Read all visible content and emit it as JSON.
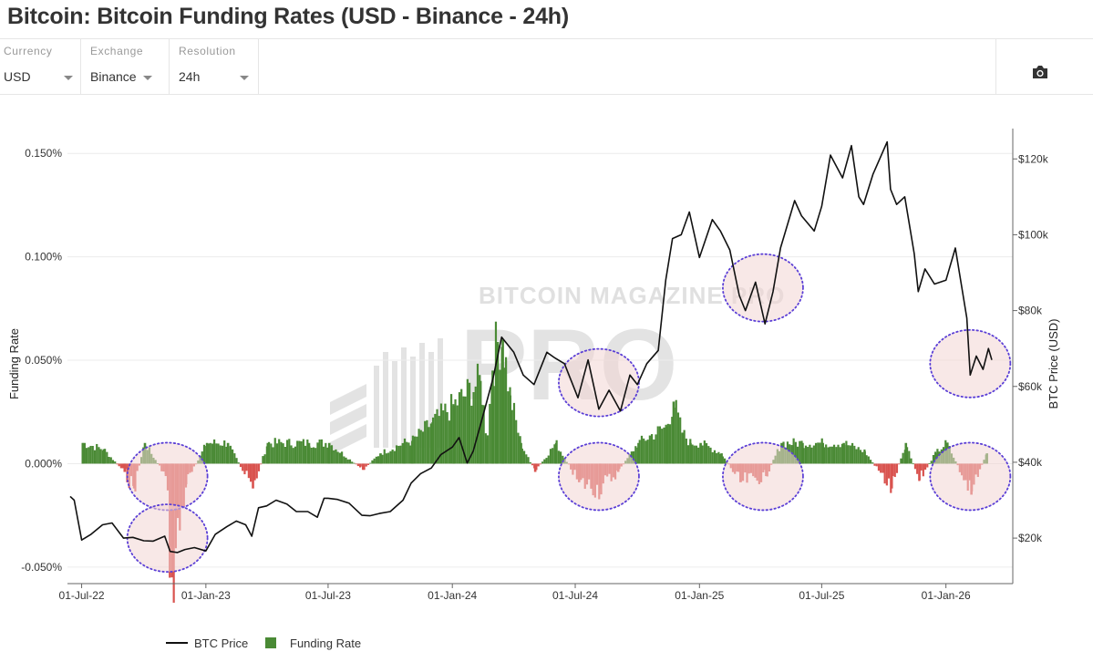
{
  "title": "Bitcoin: Bitcoin Funding Rates (USD - Binance - 24h)",
  "controls": [
    {
      "label": "Currency",
      "value": "USD"
    },
    {
      "label": "Exchange",
      "value": "Binance"
    },
    {
      "label": "Resolution",
      "value": "24h"
    }
  ],
  "icons": {
    "snapshot": "camera-icon",
    "dropdown": "caret-down-icon"
  },
  "colors": {
    "price": "#111111",
    "funding_pos": "#4a8a35",
    "funding_neg": "#d9534f",
    "highlight": "#f3d6d3",
    "circle": "#5b3fd6"
  },
  "chart_data": {
    "type": "bar+line",
    "title": "",
    "watermark": "BITCOIN MAGAZINE PRO",
    "xlabel": "",
    "ylabel": "Funding Rate",
    "y2label": "BTC Price (USD)",
    "x_ticks": [
      "01-Jul-22",
      "01-Jan-23",
      "01-Jul-23",
      "01-Jan-24",
      "01-Jul-24",
      "01-Jan-25",
      "01-Jul-25",
      "01-Jan-26"
    ],
    "y_ticks": [
      "0.150%",
      "0.100%",
      "0.050%",
      "0.000%",
      "-0.050%"
    ],
    "y_tick_values": [
      0.15,
      0.1,
      0.05,
      0,
      -0.05
    ],
    "ylim": [
      -0.058,
      0.162
    ],
    "y2_ticks": [
      "$120k",
      "$100k",
      "$80k",
      "$60k",
      "$40k",
      "$20k"
    ],
    "y2_tick_values": [
      120000,
      100000,
      80000,
      60000,
      40000,
      20000
    ],
    "y2lim": [
      8000,
      128000
    ],
    "xlim": [
      "2022-06-10",
      "2026-04-10"
    ],
    "legend_position": "bottom-left",
    "series": [
      {
        "name": "BTC Price",
        "type": "line",
        "axis": "right",
        "x": [
          "2022-06-14",
          "2022-06-20",
          "2022-07-01",
          "2022-07-15",
          "2022-08-01",
          "2022-08-15",
          "2022-09-01",
          "2022-09-15",
          "2022-10-01",
          "2022-10-15",
          "2022-11-01",
          "2022-11-09",
          "2022-11-20",
          "2022-12-01",
          "2022-12-15",
          "2023-01-01",
          "2023-01-15",
          "2023-02-01",
          "2023-02-15",
          "2023-03-01",
          "2023-03-10",
          "2023-03-20",
          "2023-04-01",
          "2023-04-15",
          "2023-05-01",
          "2023-05-15",
          "2023-06-01",
          "2023-06-15",
          "2023-06-25",
          "2023-07-01",
          "2023-07-15",
          "2023-08-01",
          "2023-08-20",
          "2023-09-01",
          "2023-09-15",
          "2023-10-01",
          "2023-10-20",
          "2023-11-01",
          "2023-11-15",
          "2023-12-01",
          "2023-12-15",
          "2024-01-01",
          "2024-01-11",
          "2024-01-23",
          "2024-02-01",
          "2024-02-15",
          "2024-03-01",
          "2024-03-14",
          "2024-04-01",
          "2024-04-15",
          "2024-05-01",
          "2024-05-20",
          "2024-06-01",
          "2024-06-15",
          "2024-07-05",
          "2024-07-20",
          "2024-08-05",
          "2024-08-20",
          "2024-09-06",
          "2024-09-20",
          "2024-10-01",
          "2024-10-15",
          "2024-11-01",
          "2024-11-12",
          "2024-11-22",
          "2024-12-05",
          "2024-12-17",
          "2025-01-01",
          "2025-01-20",
          "2025-02-01",
          "2025-02-15",
          "2025-03-01",
          "2025-03-10",
          "2025-03-25",
          "2025-04-08",
          "2025-04-20",
          "2025-05-01",
          "2025-05-22",
          "2025-06-01",
          "2025-06-20",
          "2025-07-01",
          "2025-07-14",
          "2025-08-01",
          "2025-08-14",
          "2025-08-25",
          "2025-09-01",
          "2025-09-15",
          "2025-10-06",
          "2025-10-11",
          "2025-10-20",
          "2025-11-01",
          "2025-11-15",
          "2025-11-21",
          "2025-12-01",
          "2025-12-15",
          "2026-01-01",
          "2026-01-15",
          "2026-02-01",
          "2026-02-06",
          "2026-02-15",
          "2026-02-25",
          "2026-03-05",
          "2026-03-10"
        ],
        "values": [
          31000,
          30000,
          19500,
          21000,
          23500,
          24000,
          20000,
          20200,
          19300,
          19200,
          20500,
          16500,
          16200,
          17000,
          17500,
          16600,
          21000,
          23000,
          24500,
          23500,
          20500,
          28000,
          28500,
          30000,
          29000,
          27000,
          27000,
          25500,
          30500,
          30500,
          30200,
          29200,
          26000,
          25900,
          26500,
          27000,
          30000,
          34500,
          37000,
          38500,
          42000,
          44000,
          46500,
          39800,
          43000,
          52000,
          62000,
          73000,
          69000,
          63000,
          60500,
          69000,
          67500,
          66000,
          57000,
          67000,
          54000,
          59000,
          53500,
          63000,
          60500,
          66000,
          69500,
          88000,
          99000,
          100000,
          106000,
          94000,
          104000,
          101000,
          96000,
          84000,
          80000,
          87500,
          76500,
          85000,
          96500,
          109000,
          105000,
          101000,
          107500,
          121000,
          115000,
          123500,
          110000,
          108000,
          116000,
          124500,
          112000,
          108000,
          110000,
          95000,
          85000,
          91000,
          87000,
          88000,
          96500,
          78000,
          63000,
          68000,
          64500,
          70000,
          67000
        ]
      },
      {
        "name": "Funding Rate",
        "type": "bar",
        "axis": "left",
        "x": [
          "2022-07-01",
          "2022-08-01",
          "2022-09-01",
          "2022-09-15",
          "2022-10-01",
          "2022-11-01",
          "2022-11-10",
          "2022-12-01",
          "2023-01-01",
          "2023-02-01",
          "2023-03-10",
          "2023-04-01",
          "2023-06-01",
          "2023-07-01",
          "2023-08-20",
          "2023-09-15",
          "2023-10-20",
          "2023-11-01",
          "2023-12-01",
          "2024-01-01",
          "2024-02-10",
          "2024-02-20",
          "2024-02-28",
          "2024-03-05",
          "2024-03-14",
          "2024-03-25",
          "2024-04-10",
          "2024-05-01",
          "2024-06-01",
          "2024-07-05",
          "2024-08-05",
          "2024-09-01",
          "2024-10-01",
          "2024-11-12",
          "2024-11-22",
          "2024-12-05",
          "2024-12-17",
          "2025-01-01",
          "2025-02-01",
          "2025-03-01",
          "2025-04-08",
          "2025-05-01",
          "2025-06-01",
          "2025-07-01",
          "2025-08-01",
          "2025-09-01",
          "2025-10-11",
          "2025-11-01",
          "2025-11-21",
          "2025-12-15",
          "2026-01-01",
          "2026-02-06",
          "2026-03-01"
        ],
        "values": [
          0.01,
          0.007,
          -0.004,
          -0.012,
          0.01,
          -0.006,
          -0.055,
          -0.01,
          0.01,
          0.01,
          -0.012,
          0.01,
          0.01,
          0.01,
          -0.003,
          0.005,
          0.01,
          0.011,
          0.02,
          0.028,
          0.04,
          0.012,
          0.045,
          0.058,
          0.06,
          0.033,
          0.01,
          -0.004,
          0.01,
          -0.009,
          -0.012,
          -0.004,
          0.01,
          0.018,
          0.03,
          0.015,
          0.01,
          0.01,
          0.005,
          -0.009,
          -0.006,
          0.01,
          0.01,
          0.01,
          0.01,
          0.006,
          -0.012,
          0.01,
          -0.008,
          0.005,
          0.01,
          -0.015,
          0.005
        ]
      }
    ],
    "highlights": [
      {
        "x": "2022-11-05",
        "y": 0.0
      },
      {
        "x": "2022-11-05",
        "y2": 20000
      },
      {
        "x": "2024-08-05",
        "y2": 61000
      },
      {
        "x": "2024-08-05",
        "y": 0.0
      },
      {
        "x": "2025-04-05",
        "y2": 86000
      },
      {
        "x": "2025-04-05",
        "y": 0.0
      },
      {
        "x": "2026-02-06",
        "y2": 66000
      },
      {
        "x": "2026-02-06",
        "y": 0.0
      }
    ]
  }
}
